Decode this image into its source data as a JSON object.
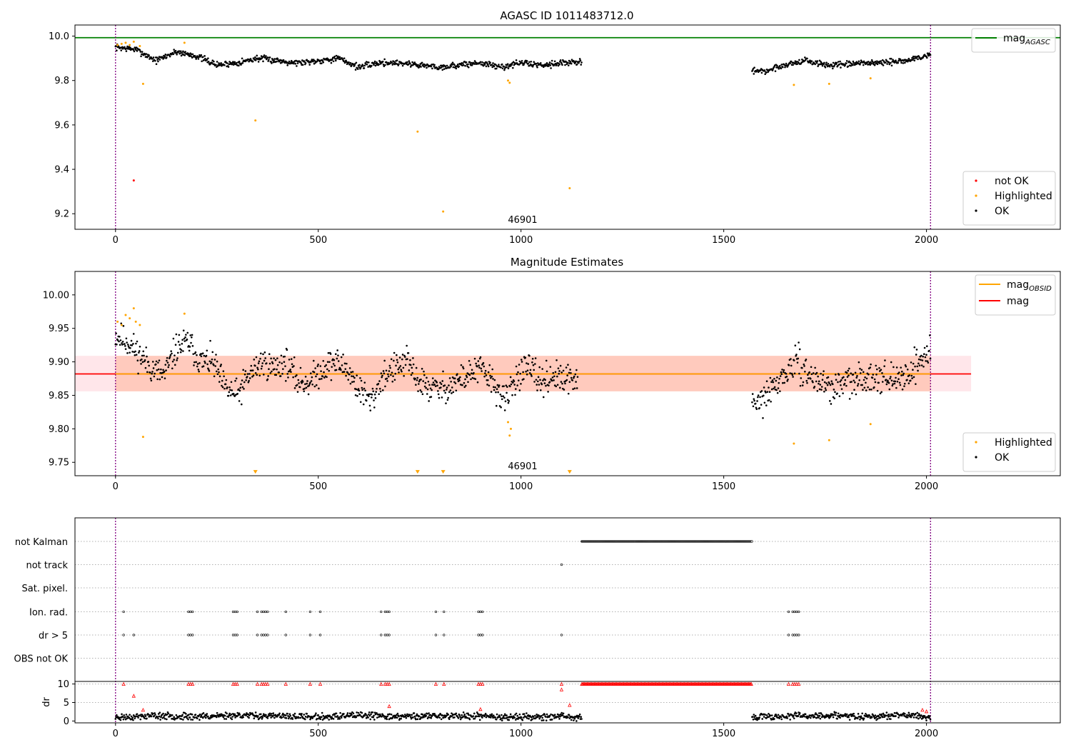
{
  "chart_data": [
    {
      "type": "scatter",
      "title": "AGASC ID 1011483712.0",
      "xlim": [
        -100,
        2330
      ],
      "ylim": [
        9.13,
        10.05
      ],
      "xticks": [
        "0",
        "500",
        "1000",
        "1500",
        "2000"
      ],
      "yticks": [
        "9.2",
        "9.4",
        "9.6",
        "9.8",
        "10.0"
      ],
      "annotation": "46901",
      "reference_lines": [
        {
          "name": "mag",
          "subscript": "AGASC",
          "orientation": "horizontal",
          "value": 9.993,
          "color": "#008000"
        },
        {
          "orientation": "vertical",
          "value": 0,
          "color": "#800080",
          "style": "dotted"
        },
        {
          "orientation": "vertical",
          "value": 2010,
          "color": "#800080",
          "style": "dotted"
        }
      ],
      "legend_upper": {
        "placement": "top-right",
        "entries": [
          {
            "label": "mag",
            "subscript": "AGASC",
            "color": "#008000",
            "marker": "line"
          }
        ]
      },
      "legend_lower": {
        "placement": "bottom-right",
        "entries": [
          {
            "label": "not OK",
            "color": "#ff0000",
            "marker": "dot"
          },
          {
            "label": "Highlighted",
            "color": "#ffa500",
            "marker": "dot"
          },
          {
            "label": "OK",
            "color": "#000000",
            "marker": "dot"
          }
        ]
      },
      "series": [
        {
          "name": "OK",
          "color": "#000000",
          "segments": [
            {
              "x": [
                0,
                50,
                100,
                150,
                200,
                250,
                300,
                350,
                400,
                450,
                500,
                550,
                600,
                650,
                700,
                750,
                800,
                850,
                900,
                950,
                1000,
                1050,
                1100,
                1150
              ],
              "y": [
                9.95,
                9.94,
                9.89,
                9.93,
                9.91,
                9.87,
                9.88,
                9.9,
                9.89,
                9.88,
                9.89,
                9.9,
                9.86,
                9.88,
                9.88,
                9.87,
                9.86,
                9.87,
                9.88,
                9.86,
                9.88,
                9.87,
                9.88,
                9.88
              ]
            },
            {
              "x": [
                1570,
                1600,
                1650,
                1700,
                1750,
                1800,
                1850,
                1900,
                1950,
                2000,
                2010
              ],
              "y": [
                9.85,
                9.84,
                9.87,
                9.89,
                9.87,
                9.87,
                9.88,
                9.88,
                9.89,
                9.91,
                9.92
              ]
            }
          ]
        },
        {
          "name": "Highlighted",
          "color": "#ffa500",
          "x": [
            5,
            15,
            25,
            35,
            45,
            60,
            68,
            170,
            345,
            745,
            808,
            968,
            972,
            1120,
            1673,
            1760,
            1862
          ],
          "y": [
            9.96,
            9.965,
            9.97,
            9.96,
            9.975,
            9.955,
            9.785,
            9.97,
            9.62,
            9.57,
            9.21,
            9.8,
            9.79,
            9.315,
            9.78,
            9.785,
            9.81
          ]
        },
        {
          "name": "not OK",
          "color": "#ff0000",
          "x": [
            45
          ],
          "y": [
            9.35
          ]
        }
      ]
    },
    {
      "type": "scatter",
      "title": "Magnitude Estimates",
      "xlim": [
        -100,
        2330
      ],
      "ylim": [
        9.73,
        10.035
      ],
      "xticks": [
        "0",
        "500",
        "1000",
        "1500",
        "2000"
      ],
      "yticks": [
        "9.75",
        "9.80",
        "9.85",
        "9.90",
        "9.95",
        "10.00"
      ],
      "annotation": "46901",
      "bands": [
        {
          "x": [
            -100,
            2110
          ],
          "y": [
            9.856,
            9.909
          ],
          "color": "#ffc0cb"
        },
        {
          "x": [
            0,
            2010
          ],
          "y": [
            9.856,
            9.909
          ],
          "color": "#ffa07a"
        }
      ],
      "reference_lines": [
        {
          "name": "mag",
          "orientation": "horizontal",
          "value": 9.882,
          "color": "#ff0000",
          "x": [
            -100,
            2110
          ]
        },
        {
          "name": "mag",
          "subscript": "OBSID",
          "orientation": "horizontal",
          "value": 9.882,
          "color": "#ffa500",
          "x": [
            0,
            2010
          ]
        },
        {
          "orientation": "vertical",
          "value": 0,
          "color": "#800080",
          "style": "dotted"
        },
        {
          "orientation": "vertical",
          "value": 2010,
          "color": "#800080",
          "style": "dotted"
        }
      ],
      "legend_upper": {
        "placement": "top-right",
        "entries": [
          {
            "label": "mag",
            "subscript": "OBSID",
            "color": "#ffa500",
            "marker": "line"
          },
          {
            "label": "mag",
            "color": "#ff0000",
            "marker": "line"
          }
        ]
      },
      "legend_lower": {
        "placement": "bottom-right",
        "entries": [
          {
            "label": "Highlighted",
            "color": "#ffa500",
            "marker": "dot"
          },
          {
            "label": "OK",
            "color": "#000000",
            "marker": "dot"
          }
        ]
      },
      "series": [
        {
          "name": "OK",
          "color": "#000000",
          "segments": [
            {
              "x": [
                0,
                30,
                60,
                90,
                120,
                150,
                180,
                210,
                240,
                270,
                300,
                330,
                360,
                390,
                420,
                450,
                480,
                510,
                540,
                570,
                600,
                630,
                660,
                690,
                720,
                750,
                780,
                810,
                840,
                870,
                900,
                930,
                960,
                990,
                1020,
                1050,
                1080,
                1110,
                1140
              ],
              "y": [
                9.94,
                9.93,
                9.91,
                9.89,
                9.88,
                9.92,
                9.93,
                9.9,
                9.9,
                9.86,
                9.85,
                9.88,
                9.9,
                9.89,
                9.9,
                9.87,
                9.87,
                9.89,
                9.9,
                9.89,
                9.86,
                9.84,
                9.88,
                9.89,
                9.9,
                9.87,
                9.86,
                9.86,
                9.87,
                9.88,
                9.89,
                9.87,
                9.84,
                9.88,
                9.89,
                9.87,
                9.88,
                9.87,
                9.88
              ]
            },
            {
              "x": [
                1570,
                1590,
                1620,
                1650,
                1680,
                1710,
                1740,
                1770,
                1800,
                1830,
                1860,
                1890,
                1920,
                1950,
                1980,
                2000,
                2010
              ],
              "y": [
                9.83,
                9.84,
                9.86,
                9.88,
                9.9,
                9.88,
                9.87,
                9.86,
                9.87,
                9.87,
                9.88,
                9.88,
                9.87,
                9.88,
                9.9,
                9.91,
                9.92
              ]
            }
          ]
        },
        {
          "name": "Highlighted",
          "color": "#ffa500",
          "x": [
            5,
            15,
            25,
            35,
            45,
            50,
            60,
            68,
            170,
            968,
            972,
            975,
            1673,
            1760,
            1862
          ],
          "y": [
            9.96,
            9.955,
            9.97,
            9.965,
            9.98,
            9.96,
            9.955,
            9.788,
            9.972,
            9.81,
            9.79,
            9.8,
            9.778,
            9.783,
            9.807
          ]
        },
        {
          "name": "Highlighted (below range)",
          "color": "#ffa500",
          "marker": "triangle-down",
          "x": [
            345,
            745,
            808,
            1120
          ],
          "y": [
            9.733,
            9.733,
            9.733,
            9.733
          ]
        }
      ]
    },
    {
      "type": "scatter",
      "xlim": [
        -100,
        2330
      ],
      "xticks": [
        "0",
        "500",
        "1000",
        "1500",
        "2000"
      ],
      "flag_labels": [
        "not Kalman",
        "not track",
        "Sat. pixel.",
        "Ion. rad.",
        "dr > 5",
        "OBS not OK"
      ],
      "flags": {
        "not_kalman": {
          "x_range": [
            1150,
            1570
          ]
        },
        "not_track": {
          "x": [
            1100
          ]
        },
        "sat_pixel": {
          "x": []
        },
        "ion_rad": {
          "x": [
            20,
            180,
            185,
            190,
            290,
            295,
            300,
            350,
            360,
            365,
            370,
            375,
            420,
            480,
            505,
            655,
            665,
            670,
            675,
            790,
            810,
            895,
            900,
            905,
            1660,
            1670,
            1675,
            1680,
            1685
          ]
        },
        "dr_gt_5": {
          "x": [
            20,
            45,
            180,
            185,
            190,
            290,
            295,
            300,
            350,
            360,
            365,
            370,
            375,
            420,
            480,
            505,
            655,
            665,
            670,
            675,
            790,
            810,
            895,
            900,
            905,
            1100,
            1660,
            1670,
            1675,
            1680,
            1685
          ]
        },
        "obs_not_ok": {
          "x": []
        }
      },
      "dr_panel": {
        "ylabel": "dr",
        "yticks": [
          "0",
          "5",
          "10"
        ],
        "ylim": [
          -0.5,
          10.5
        ],
        "ok_segments": [
          {
            "x": [
              0,
              100,
              200,
              300,
              400,
              500,
              600,
              700,
              800,
              900,
              1000,
              1100,
              1150
            ],
            "y": [
              1.0,
              1.4,
              1.2,
              1.6,
              1.3,
              1.1,
              1.5,
              1.2,
              1.4,
              1.3,
              1.1,
              1.2,
              0.8
            ]
          },
          {
            "x": [
              1570,
              1650,
              1750,
              1850,
              1950,
              2010
            ],
            "y": [
              1.0,
              1.3,
              1.5,
              1.2,
              1.6,
              1.0
            ]
          }
        ],
        "flagged_capped": {
          "x": [
            20,
            180,
            185,
            190,
            290,
            295,
            300,
            350,
            360,
            365,
            370,
            375,
            420,
            480,
            505,
            655,
            665,
            670,
            675,
            790,
            810,
            895,
            900,
            905,
            1100,
            1660,
            1670,
            1675,
            1680,
            1685
          ],
          "y": 10
        },
        "flagged_range": {
          "x_range": [
            1150,
            1570
          ],
          "y": 10
        },
        "flagged_extra": {
          "x": [
            45,
            68,
            675,
            900,
            1100,
            1120,
            1990,
            2000
          ],
          "y": [
            6.8,
            3.0,
            4.0,
            3.2,
            8.5,
            4.3,
            3.0,
            2.6
          ]
        }
      }
    }
  ]
}
